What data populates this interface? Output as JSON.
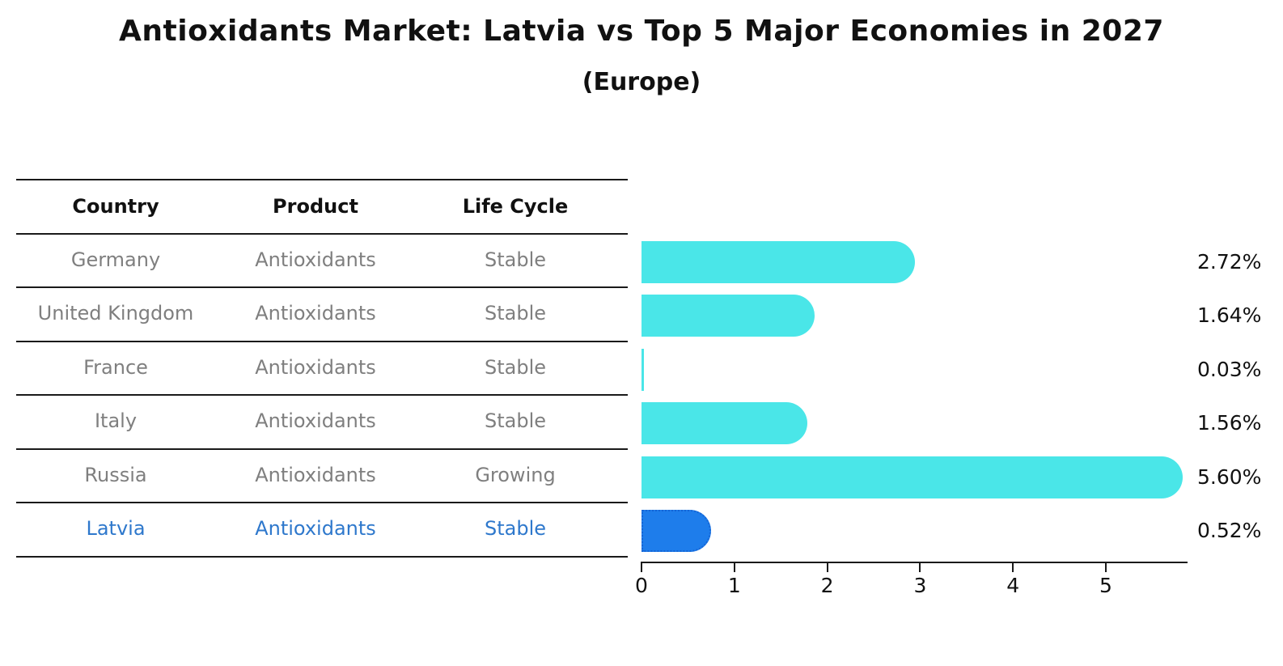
{
  "chart_data": {
    "type": "bar",
    "orientation": "horizontal",
    "title": "Antioxidants Market: Latvia vs Top 5 Major Economies in 2027",
    "subtitle": "(Europe)",
    "categories": [
      "Germany",
      "United Kingdom",
      "France",
      "Italy",
      "Russia",
      "Latvia"
    ],
    "values": [
      2.72,
      1.64,
      0.03,
      1.56,
      5.6,
      0.52
    ],
    "value_labels": [
      "2.72%",
      "1.64%",
      "0.03%",
      "1.56%",
      "5.60%",
      "0.52%"
    ],
    "x_ticks": [
      "0",
      "1",
      "2",
      "3",
      "4",
      "5"
    ],
    "xlim": [
      0,
      5.88
    ],
    "grid": false,
    "legend_position": "none",
    "highlight_index": 5,
    "colors": {
      "bar": "#4AE6E8",
      "highlight_bar": "#1E7DEB",
      "highlight_bar_border": "#1565D6",
      "highlight_text": "#2E78CC",
      "table_text": "#7f7f7f",
      "axis": "#1a1a1a",
      "title_text": "#111111"
    }
  },
  "table": {
    "headers": [
      "Country",
      "Product",
      "Life Cycle"
    ],
    "rows": [
      {
        "country": "Germany",
        "product": "Antioxidants",
        "life_cycle": "Stable"
      },
      {
        "country": "United Kingdom",
        "product": "Antioxidants",
        "life_cycle": "Stable"
      },
      {
        "country": "France",
        "product": "Antioxidants",
        "life_cycle": "Stable"
      },
      {
        "country": "Italy",
        "product": "Antioxidants",
        "life_cycle": "Stable"
      },
      {
        "country": "Russia",
        "product": "Antioxidants",
        "life_cycle": "Growing"
      },
      {
        "country": "Latvia",
        "product": "Antioxidants",
        "life_cycle": "Stable"
      }
    ]
  }
}
